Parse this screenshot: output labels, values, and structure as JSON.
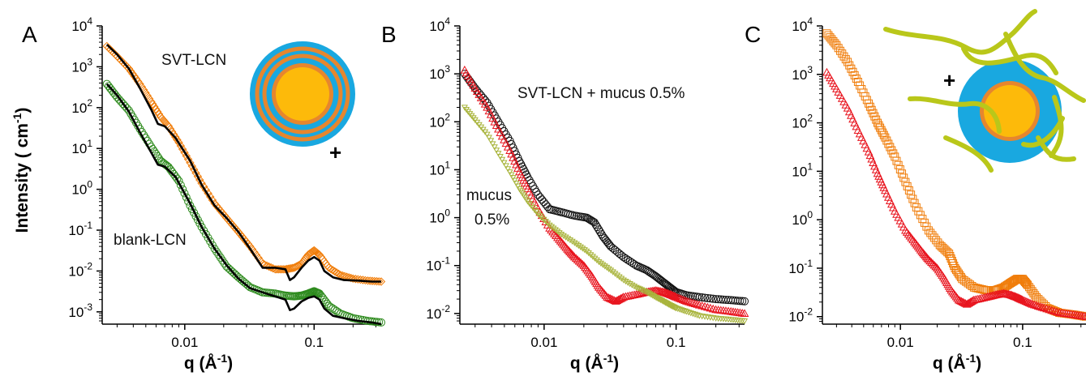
{
  "figure": {
    "ylabel": "Intensity ( cm",
    "ylabel_sup": "-1",
    "ylabel_end": ")",
    "xlabel": "q (Å",
    "xlabel_sup": "-1",
    "xlabel_end": ")"
  },
  "colors": {
    "orange": "#F07D0A",
    "green": "#2E8B1E",
    "black": "#111111",
    "red": "#E8141E",
    "olive": "#A8B43C",
    "gray": "#333333",
    "fit": "#000000",
    "shell_blue": "#19A8E0",
    "core_yellow": "#FDBA0A",
    "ring_orange": "#E6862E",
    "polymer": "#B9C71A"
  },
  "chart_data": [
    {
      "type": "scatter",
      "panel_label": "A",
      "xscale": "log",
      "yscale": "log",
      "xlim": [
        0.0023,
        0.33
      ],
      "ylim": [
        0.0005,
        10000
      ],
      "x_ticks": [
        "0.01",
        "0.1"
      ],
      "y_ticks": [
        "10",
        "10",
        "10",
        "10",
        "10",
        "10",
        "10",
        "10"
      ],
      "y_tick_exps": [
        "4",
        "3",
        "2",
        "1",
        "0",
        "-1",
        "-2",
        "-3"
      ],
      "annotations": [
        "SVT-LCN",
        "blank-LCN",
        "+"
      ],
      "series": [
        {
          "name": "SVT-LCN",
          "marker": "diamond",
          "color": "orange",
          "x": [
            0.0025,
            0.003,
            0.0037,
            0.0045,
            0.0055,
            0.0065,
            0.0075,
            0.009,
            0.011,
            0.0135,
            0.017,
            0.021,
            0.026,
            0.032,
            0.04,
            0.05,
            0.06,
            0.07,
            0.08,
            0.09,
            0.1,
            0.11,
            0.13,
            0.16,
            0.2,
            0.26,
            0.33
          ],
          "y": [
            3200,
            1800,
            900,
            380,
            140,
            60,
            35,
            14,
            4.5,
            1.4,
            0.45,
            0.2,
            0.09,
            0.04,
            0.015,
            0.011,
            0.011,
            0.012,
            0.015,
            0.025,
            0.032,
            0.025,
            0.012,
            0.008,
            0.0065,
            0.0058,
            0.0055
          ]
        },
        {
          "name": "blank-LCN",
          "marker": "circle",
          "color": "green",
          "x": [
            0.0025,
            0.003,
            0.0037,
            0.0045,
            0.0055,
            0.0065,
            0.0075,
            0.009,
            0.011,
            0.0135,
            0.017,
            0.021,
            0.026,
            0.032,
            0.04,
            0.05,
            0.06,
            0.07,
            0.08,
            0.09,
            0.1,
            0.11,
            0.13,
            0.16,
            0.2,
            0.26,
            0.33
          ],
          "y": [
            380,
            180,
            85,
            30,
            11,
            5,
            3.5,
            1.6,
            0.4,
            0.12,
            0.035,
            0.013,
            0.007,
            0.004,
            0.003,
            0.0028,
            0.0025,
            0.0024,
            0.0025,
            0.0028,
            0.0032,
            0.0028,
            0.0014,
            0.0009,
            0.0007,
            0.0006,
            0.00055
          ]
        }
      ],
      "fits": [
        {
          "x": [
            0.0025,
            0.003,
            0.0037,
            0.0045,
            0.0055,
            0.0062,
            0.007,
            0.0085,
            0.011,
            0.0135,
            0.017,
            0.021,
            0.026,
            0.032,
            0.04,
            0.05,
            0.06,
            0.065,
            0.07,
            0.08,
            0.09,
            0.1,
            0.11,
            0.12,
            0.14,
            0.17,
            0.22,
            0.28,
            0.33
          ],
          "y": [
            3500,
            2000,
            900,
            300,
            90,
            40,
            35,
            18,
            5,
            1.3,
            0.4,
            0.2,
            0.09,
            0.035,
            0.012,
            0.012,
            0.011,
            0.006,
            0.007,
            0.012,
            0.018,
            0.022,
            0.018,
            0.01,
            0.007,
            0.006,
            0.0058,
            0.0055,
            0.0055
          ]
        },
        {
          "x": [
            0.0025,
            0.003,
            0.0037,
            0.0045,
            0.0055,
            0.0062,
            0.007,
            0.0085,
            0.011,
            0.0135,
            0.017,
            0.021,
            0.026,
            0.032,
            0.04,
            0.05,
            0.06,
            0.065,
            0.07,
            0.08,
            0.09,
            0.1,
            0.11,
            0.12,
            0.14,
            0.17,
            0.22,
            0.28,
            0.33
          ],
          "y": [
            380,
            200,
            80,
            25,
            8,
            4,
            3.6,
            2,
            0.45,
            0.12,
            0.035,
            0.014,
            0.0065,
            0.0038,
            0.003,
            0.0024,
            0.002,
            0.0011,
            0.0012,
            0.0018,
            0.0022,
            0.0024,
            0.002,
            0.0012,
            0.0008,
            0.0007,
            0.0006,
            0.00055,
            0.0005
          ]
        }
      ]
    },
    {
      "type": "scatter",
      "panel_label": "B",
      "xscale": "log",
      "yscale": "log",
      "xlim": [
        0.0023,
        0.33
      ],
      "ylim": [
        0.006,
        10000
      ],
      "x_ticks": [
        "0.01",
        "0.1"
      ],
      "y_ticks": [
        "10",
        "10",
        "10",
        "10",
        "10",
        "10",
        "10"
      ],
      "y_tick_exps": [
        "4",
        "3",
        "2",
        "1",
        "0",
        "-1",
        "-2"
      ],
      "annotations": [
        "SVT-LCN + mucus 0.5%",
        "mucus",
        "0.5%"
      ],
      "series": [
        {
          "name": "SVT-LCN + mucus 0.5%",
          "marker": "circle",
          "color": "black",
          "x": [
            0.0025,
            0.003,
            0.0037,
            0.0045,
            0.0055,
            0.0065,
            0.0075,
            0.009,
            0.011,
            0.0135,
            0.017,
            0.021,
            0.024,
            0.028,
            0.032,
            0.04,
            0.05,
            0.06,
            0.07,
            0.08,
            0.09,
            0.1,
            0.12,
            0.15,
            0.2,
            0.26,
            0.33
          ],
          "y": [
            1000,
            500,
            250,
            100,
            40,
            15,
            7,
            3,
            1.5,
            1.3,
            1.1,
            1.0,
            0.8,
            0.4,
            0.25,
            0.15,
            0.1,
            0.08,
            0.06,
            0.045,
            0.035,
            0.028,
            0.024,
            0.022,
            0.02,
            0.019,
            0.018
          ]
        },
        {
          "name": "mucus 0.5%",
          "marker": "triangle",
          "color": "red",
          "x": [
            0.0025,
            0.003,
            0.0037,
            0.0045,
            0.0055,
            0.0065,
            0.0075,
            0.009,
            0.011,
            0.013,
            0.015,
            0.017,
            0.02,
            0.023,
            0.026,
            0.03,
            0.035,
            0.04,
            0.05,
            0.06,
            0.07,
            0.08,
            0.09,
            0.1,
            0.12,
            0.15,
            0.2,
            0.26,
            0.33
          ],
          "y": [
            1200,
            500,
            200,
            70,
            25,
            9,
            4,
            1.5,
            0.6,
            0.35,
            0.22,
            0.15,
            0.1,
            0.06,
            0.035,
            0.022,
            0.018,
            0.022,
            0.025,
            0.028,
            0.03,
            0.028,
            0.025,
            0.022,
            0.018,
            0.015,
            0.012,
            0.011,
            0.01
          ]
        },
        {
          "name": "",
          "marker": "triangle-down",
          "color": "olive",
          "x": [
            0.0025,
            0.003,
            0.0037,
            0.0045,
            0.0055,
            0.0065,
            0.0075,
            0.009,
            0.011,
            0.0135,
            0.017,
            0.021,
            0.026,
            0.032,
            0.04,
            0.05,
            0.06,
            0.07,
            0.08,
            0.09,
            0.1,
            0.12,
            0.15,
            0.2,
            0.26,
            0.33
          ],
          "y": [
            200,
            110,
            55,
            22,
            9,
            4,
            2.2,
            1.2,
            0.7,
            0.45,
            0.3,
            0.2,
            0.12,
            0.08,
            0.05,
            0.035,
            0.028,
            0.022,
            0.018,
            0.015,
            0.013,
            0.011,
            0.009,
            0.008,
            0.0075,
            0.007
          ]
        }
      ]
    },
    {
      "type": "scatter",
      "panel_label": "C",
      "xscale": "log",
      "yscale": "log",
      "xlim": [
        0.0023,
        0.33
      ],
      "ylim": [
        0.007,
        10000
      ],
      "x_ticks": [
        "0.01",
        "0.1"
      ],
      "y_ticks": [
        "10",
        "10",
        "10",
        "10",
        "10",
        "10",
        "10"
      ],
      "y_tick_exps": [
        "4",
        "3",
        "2",
        "1",
        "0",
        "-1",
        "-2"
      ],
      "annotations": [
        "+"
      ],
      "series": [
        {
          "name": "",
          "marker": "square",
          "color": "orange",
          "x": [
            0.0025,
            0.003,
            0.0037,
            0.0045,
            0.0055,
            0.0065,
            0.0075,
            0.009,
            0.011,
            0.0135,
            0.017,
            0.021,
            0.025,
            0.028,
            0.032,
            0.04,
            0.05,
            0.06,
            0.07,
            0.08,
            0.09,
            0.1,
            0.11,
            0.13,
            0.16,
            0.2,
            0.26,
            0.33
          ],
          "y": [
            7000,
            4000,
            1800,
            700,
            250,
            100,
            50,
            20,
            6,
            1.8,
            0.6,
            0.3,
            0.2,
            0.1,
            0.06,
            0.04,
            0.035,
            0.035,
            0.04,
            0.05,
            0.06,
            0.06,
            0.045,
            0.025,
            0.015,
            0.012,
            0.011,
            0.01
          ]
        },
        {
          "name": "",
          "marker": "triangle",
          "color": "red",
          "x": [
            0.0025,
            0.003,
            0.0037,
            0.0045,
            0.0055,
            0.0065,
            0.0075,
            0.009,
            0.011,
            0.013,
            0.015,
            0.017,
            0.02,
            0.023,
            0.026,
            0.03,
            0.035,
            0.04,
            0.05,
            0.06,
            0.07,
            0.08,
            0.09,
            0.1,
            0.12,
            0.15,
            0.2,
            0.26,
            0.33
          ],
          "y": [
            1100,
            500,
            200,
            70,
            25,
            9,
            4,
            1.5,
            0.6,
            0.35,
            0.22,
            0.15,
            0.1,
            0.06,
            0.035,
            0.022,
            0.018,
            0.022,
            0.025,
            0.028,
            0.03,
            0.028,
            0.025,
            0.022,
            0.018,
            0.015,
            0.012,
            0.011,
            0.01
          ]
        }
      ]
    }
  ]
}
